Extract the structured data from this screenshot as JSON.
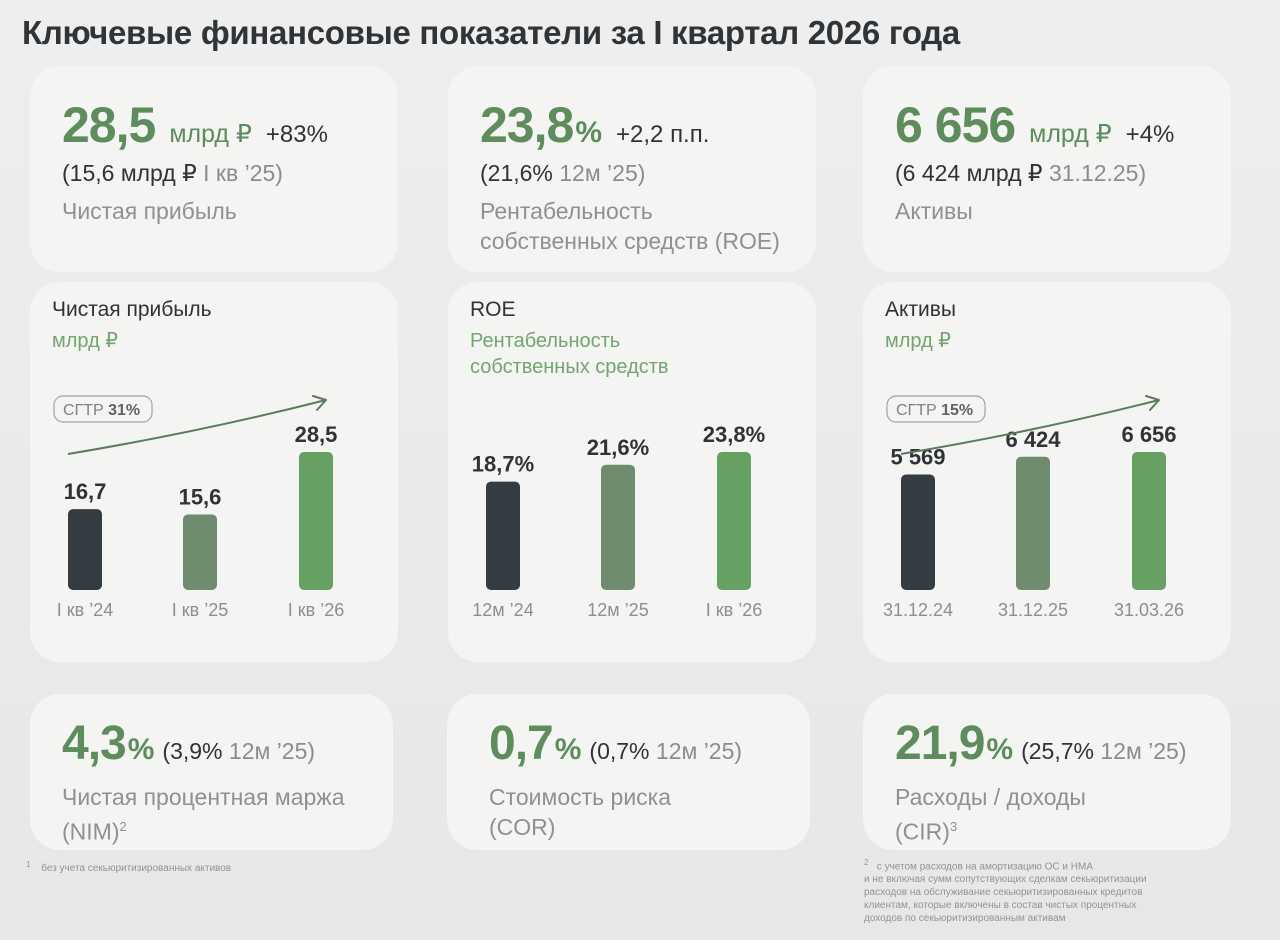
{
  "title": "Ключевые финансовые показатели за I квартал 2026 года",
  "kpi_top": [
    {
      "value": "28,5",
      "unit": "млрд ₽",
      "pct": "",
      "delta": "+83%",
      "ref_value": "(15,6 млрд ₽",
      "ref_period": "I кв ’25)",
      "caption": [
        "Чистая прибыль"
      ]
    },
    {
      "value": "23,8",
      "unit": "",
      "pct": "%",
      "delta": "+2,2 п.п.",
      "ref_value": "(21,6%",
      "ref_period": "12м ’25)",
      "caption": [
        "Рентабельность",
        "собственных средств (ROE)"
      ]
    },
    {
      "value": "6 656",
      "unit": "млрд ₽",
      "pct": "",
      "delta": "+4%",
      "ref_value": "(6 424 млрд ₽",
      "ref_period": "31.12.25)",
      "caption": [
        "Активы"
      ]
    }
  ],
  "chart_data": [
    {
      "type": "bar",
      "title": "Чистая прибыль",
      "subtitle": [
        "млрд ₽"
      ],
      "categories": [
        "I кв ’24",
        "I кв ’25",
        "I кв ’26"
      ],
      "values": [
        16.7,
        15.6,
        28.5
      ],
      "labels": [
        "16,7",
        "15,6",
        "28,5"
      ],
      "colors": [
        "#343c42",
        "#6f8c6e",
        "#66a063"
      ],
      "cagr": {
        "label": "СГТР",
        "value": "31%"
      }
    },
    {
      "type": "bar",
      "title": "ROE",
      "subtitle": [
        "Рентабельность",
        "собственных средств"
      ],
      "categories": [
        "12м ’24",
        "12м ’25",
        "I кв ’26"
      ],
      "values": [
        18.7,
        21.6,
        23.8
      ],
      "labels": [
        "18,7%",
        "21,6%",
        "23,8%"
      ],
      "colors": [
        "#343c42",
        "#6f8c6e",
        "#66a063"
      ],
      "cagr": null
    },
    {
      "type": "bar",
      "title": "Активы",
      "subtitle": [
        "млрд ₽"
      ],
      "categories": [
        "31.12.24",
        "31.12.25",
        "31.03.26"
      ],
      "values": [
        5569,
        6424,
        6656
      ],
      "labels": [
        "5 569",
        "6 424",
        "6 656"
      ],
      "colors": [
        "#343c42",
        "#6f8c6e",
        "#66a063"
      ],
      "cagr": {
        "label": "СГТР",
        "value": "15%"
      }
    }
  ],
  "kpi_bottom": [
    {
      "value": "4,3",
      "pct": "%",
      "ref_open": "(3,9%",
      "ref_period": "12м ’25)",
      "caption": [
        "Чистая процентная маржа",
        "(NIM)"
      ],
      "sup": "2"
    },
    {
      "value": "0,7",
      "pct": "%",
      "ref_open": "(0,7%",
      "ref_period": "12м ’25)",
      "caption": [
        "Стоимость риска",
        "(COR)"
      ],
      "sup": ""
    },
    {
      "value": "21,9",
      "pct": "%",
      "ref_open": "(25,7%",
      "ref_period": "12м ’25)",
      "caption": [
        "Расходы / доходы",
        "(CIR)"
      ],
      "sup": "3"
    }
  ],
  "footnotes": {
    "left_mark": "1",
    "left": "без учета секьюритизированных активов",
    "right_mark": "2",
    "right": [
      "с учетом расходов на амортизацию ОС и НМА",
      "и не включая сумм сопутствующих сделкам секьюритизации",
      "расходов на обслуживание секьюритизированных кредитов",
      "клиентам, которые включены в состав чистых процентных",
      "доходов по секьюритизированным активам"
    ]
  }
}
